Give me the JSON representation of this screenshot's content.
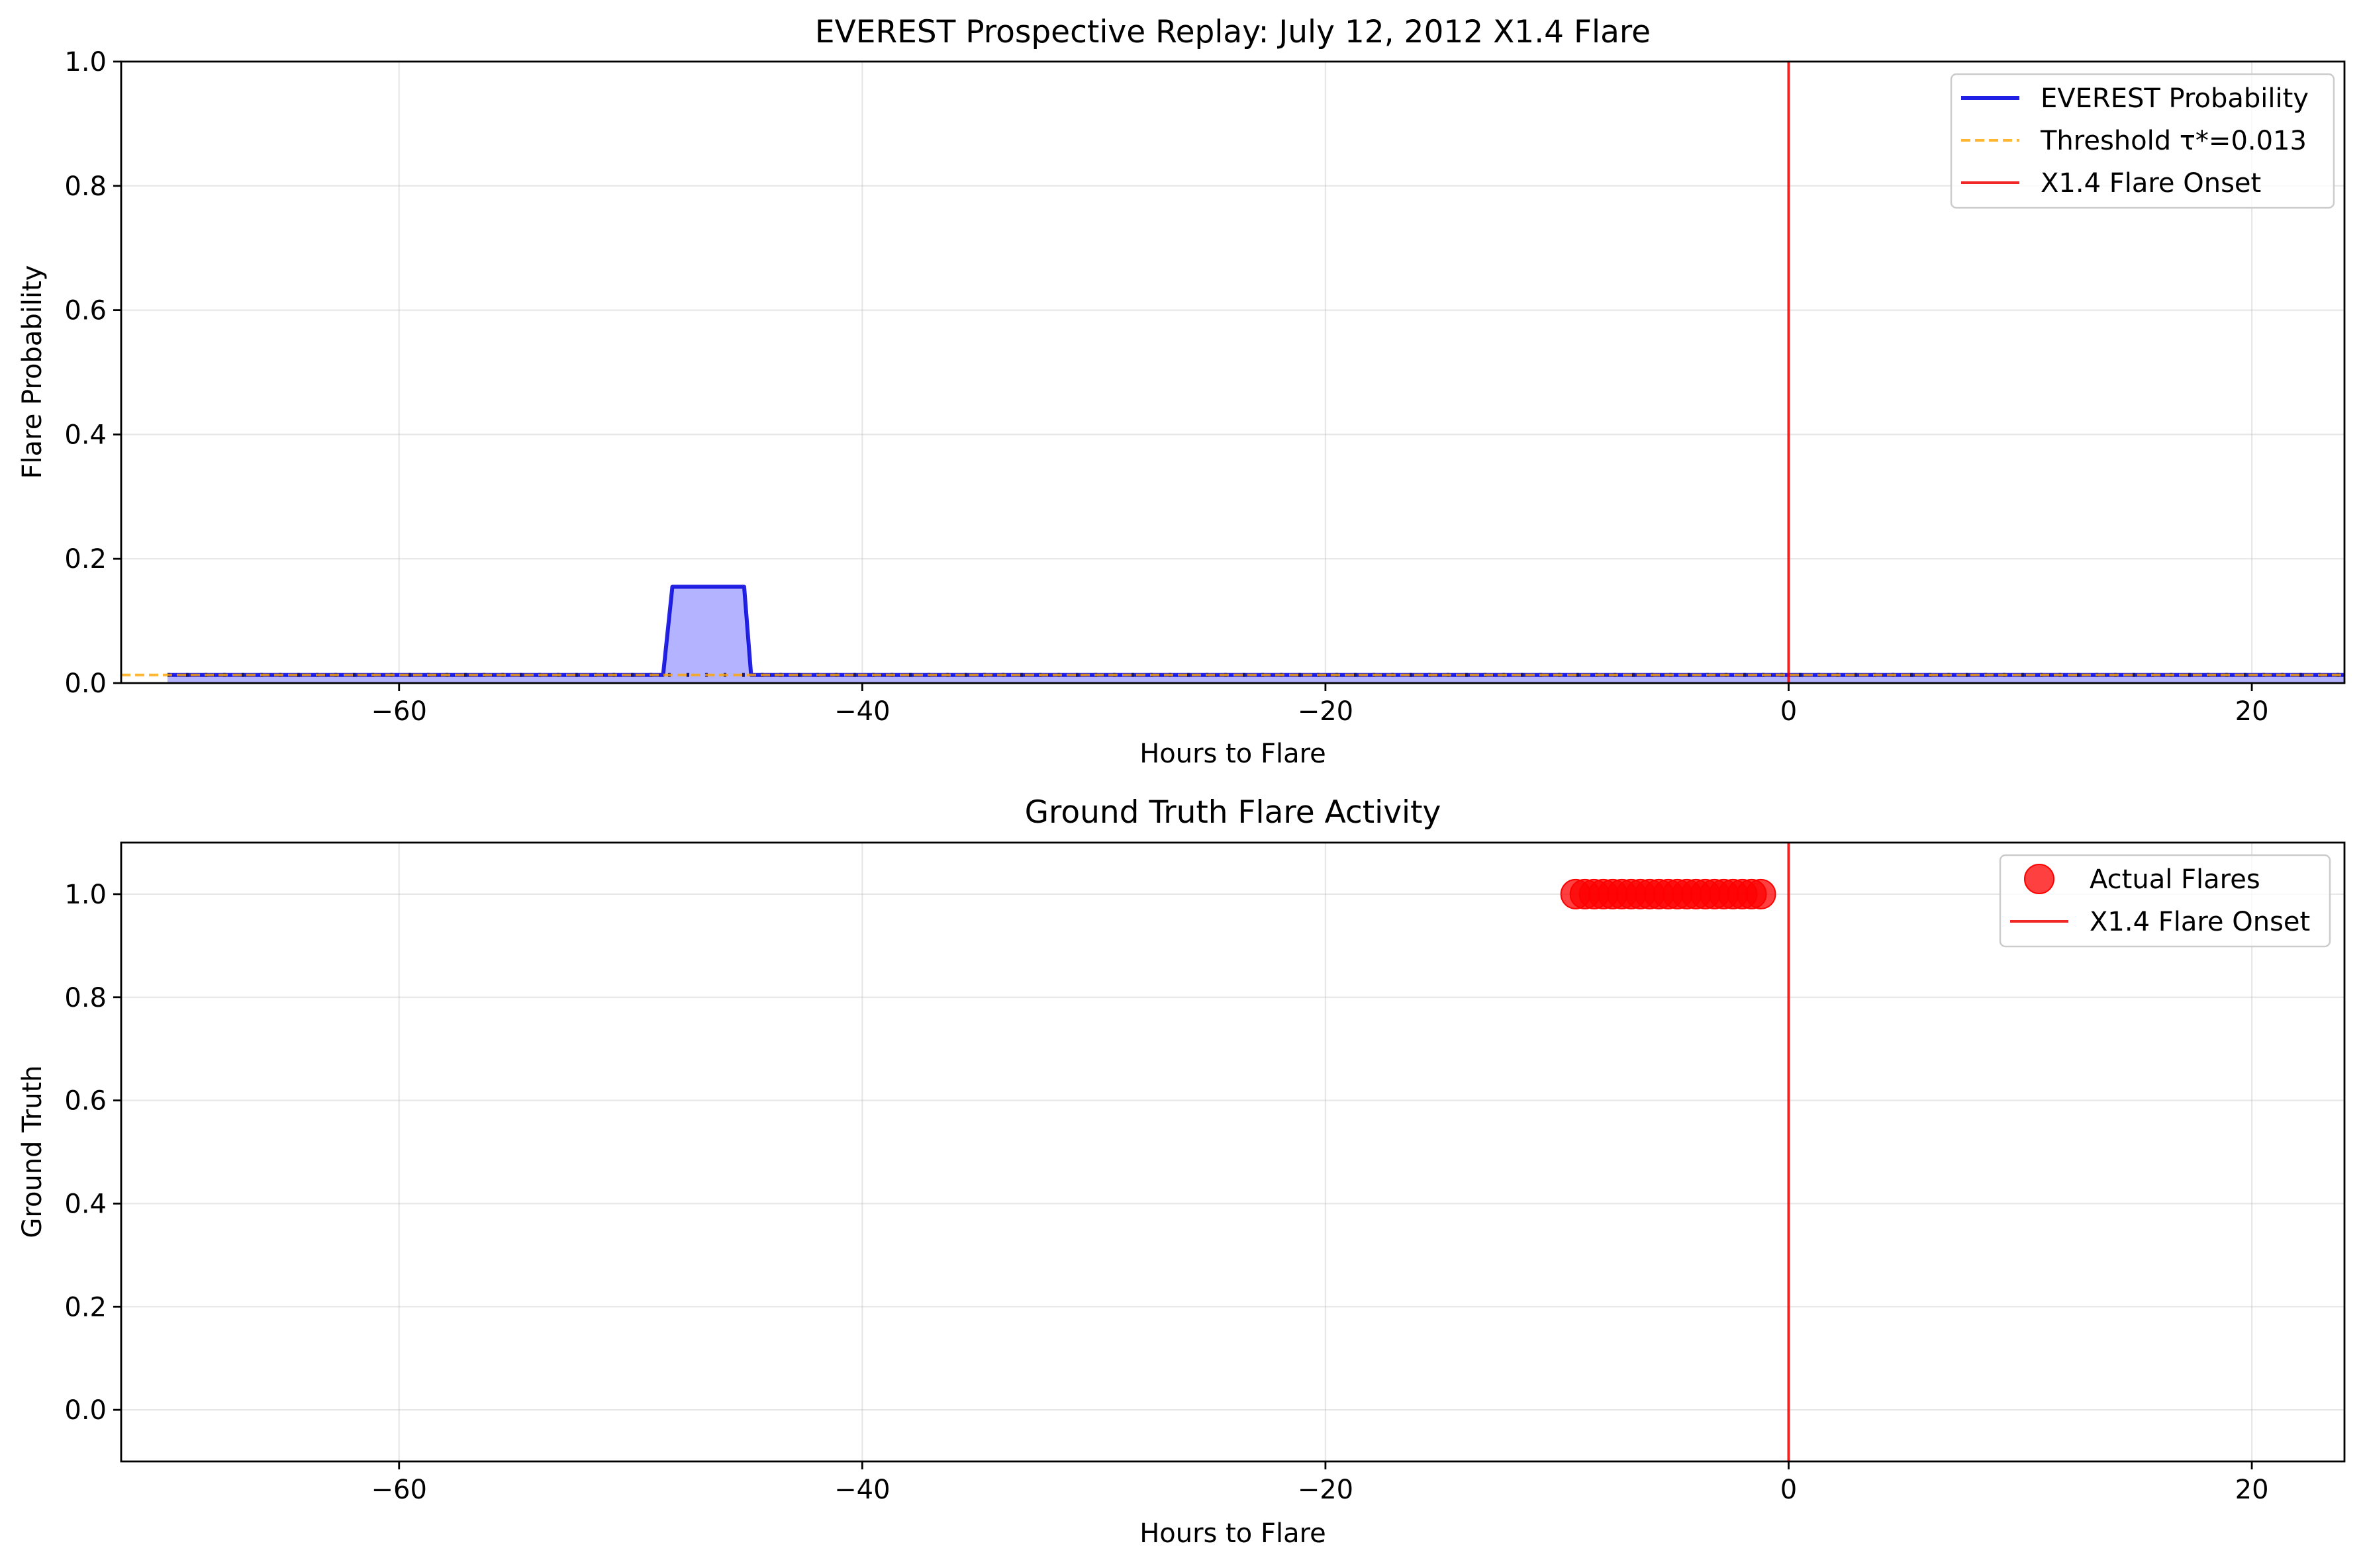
{
  "chart_data": [
    {
      "type": "line",
      "title": "EVEREST Prospective Replay: July 12, 2012 X1.4 Flare",
      "xlabel": "Hours to Flare",
      "ylabel": "Flare Probability",
      "xlim": [
        -72,
        24
      ],
      "ylim": [
        0,
        1.0
      ],
      "xticks": [
        -60,
        -40,
        -20,
        0,
        20
      ],
      "xtick_labels": [
        "−60",
        "−40",
        "−20",
        "0",
        "20"
      ],
      "yticks": [
        0.0,
        0.2,
        0.4,
        0.6,
        0.8,
        1.0
      ],
      "ytick_labels": [
        "0.0",
        "0.2",
        "0.4",
        "0.6",
        "0.8",
        "1.0"
      ],
      "grid": true,
      "legend_position": "top-right",
      "series": [
        {
          "name": "EVEREST Probability",
          "color": "#0000dd",
          "fill_color": "#b3b3ff",
          "style": "solid",
          "x": [
            -70,
            -60,
            -50,
            -48.6,
            -48.2,
            -46,
            -45.1,
            -44.8,
            -40,
            -30,
            -20,
            -10,
            0,
            10,
            20,
            24
          ],
          "y": [
            0.013,
            0.013,
            0.013,
            0.013,
            0.155,
            0.155,
            0.155,
            0.013,
            0.013,
            0.013,
            0.013,
            0.013,
            0.013,
            0.013,
            0.013,
            0.013
          ]
        },
        {
          "name": "Threshold τ*=0.013",
          "color": "#ffa500",
          "style": "dashed",
          "y_constant": 0.013
        },
        {
          "name": "X1.4 Flare Onset",
          "color": "#ee0000",
          "style": "solid",
          "x_constant": 0
        }
      ]
    },
    {
      "type": "scatter",
      "title": "Ground Truth Flare Activity",
      "xlabel": "Hours to Flare",
      "ylabel": "Ground Truth",
      "xlim": [
        -72,
        24
      ],
      "ylim": [
        -0.1,
        1.1
      ],
      "xticks": [
        -60,
        -40,
        -20,
        0,
        20
      ],
      "xtick_labels": [
        "−60",
        "−40",
        "−20",
        "0",
        "20"
      ],
      "yticks": [
        0.0,
        0.2,
        0.4,
        0.6,
        0.8,
        1.0
      ],
      "ytick_labels": [
        "0.0",
        "0.2",
        "0.4",
        "0.6",
        "0.8",
        "1.0"
      ],
      "grid": true,
      "legend_position": "top-right",
      "series": [
        {
          "name": "Actual Flares",
          "color": "#ff0000",
          "x": [
            -9.2,
            -8.8,
            -8.4,
            -8.0,
            -7.6,
            -7.2,
            -6.8,
            -6.4,
            -6.0,
            -5.6,
            -5.2,
            -4.8,
            -4.4,
            -4.0,
            -3.6,
            -3.2,
            -2.8,
            -2.4,
            -2.0,
            -1.6,
            -1.2
          ],
          "y": [
            1,
            1,
            1,
            1,
            1,
            1,
            1,
            1,
            1,
            1,
            1,
            1,
            1,
            1,
            1,
            1,
            1,
            1,
            1,
            1,
            1
          ]
        },
        {
          "name": "X1.4 Flare Onset",
          "color": "#ee0000",
          "style": "solid",
          "x_constant": 0
        }
      ]
    }
  ]
}
